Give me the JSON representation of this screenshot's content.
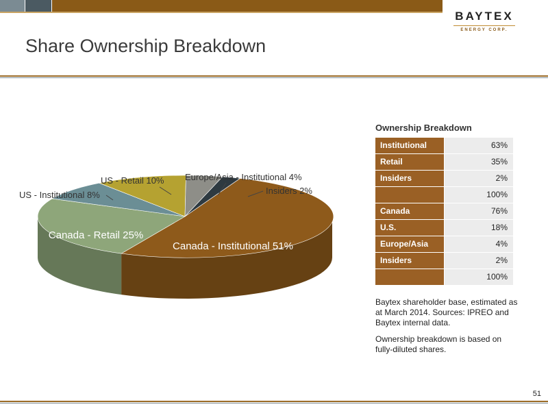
{
  "logo": {
    "name": "BAYTEX",
    "sub": "ENERGY CORP."
  },
  "slide": {
    "title": "Share Ownership Breakdown",
    "page_number": "51"
  },
  "colors": {
    "brown": "#8a5a17",
    "slate": "#4b5a62",
    "table_label_bg": "#9a6025",
    "table_value_bg": "#ececec"
  },
  "chart_data": {
    "type": "pie",
    "categories": [
      "Canada - Institutional",
      "Canada - Retail",
      "US - Institutional",
      "US - Retail",
      "Europe/Asia - Institutional",
      "Insiders"
    ],
    "values": [
      51,
      25,
      8,
      10,
      4,
      2
    ],
    "labels": [
      "Canada - Institutional 51%",
      "Canada - Retail  25%",
      "US - Institutional 8%",
      "US - Retail 10%",
      "Europe/Asia - Institutional  4%",
      "Insiders 2%"
    ],
    "colors": [
      "#8e5a1b",
      "#8ea67a",
      "#6b8e95",
      "#b5a231",
      "#8e8e88",
      "#2e3a41"
    ],
    "style": "3d"
  },
  "table": {
    "title": "Ownership Breakdown",
    "rows": [
      {
        "label": "Institutional",
        "value": "63%"
      },
      {
        "label": "Retail",
        "value": "35%"
      },
      {
        "label": "Insiders",
        "value": "2%"
      },
      {
        "label": "",
        "value": "100%"
      },
      {
        "label": "Canada",
        "value": "76%"
      },
      {
        "label": "U.S.",
        "value": "18%"
      },
      {
        "label": "Europe/Asia",
        "value": "4%"
      },
      {
        "label": "Insiders",
        "value": "2%"
      },
      {
        "label": "",
        "value": "100%"
      }
    ]
  },
  "notes": {
    "source": "Baytex shareholder base, estimated as at March 2014. Sources: IPREO and Baytex internal data.",
    "basis": "Ownership breakdown is based on fully-diluted shares."
  }
}
